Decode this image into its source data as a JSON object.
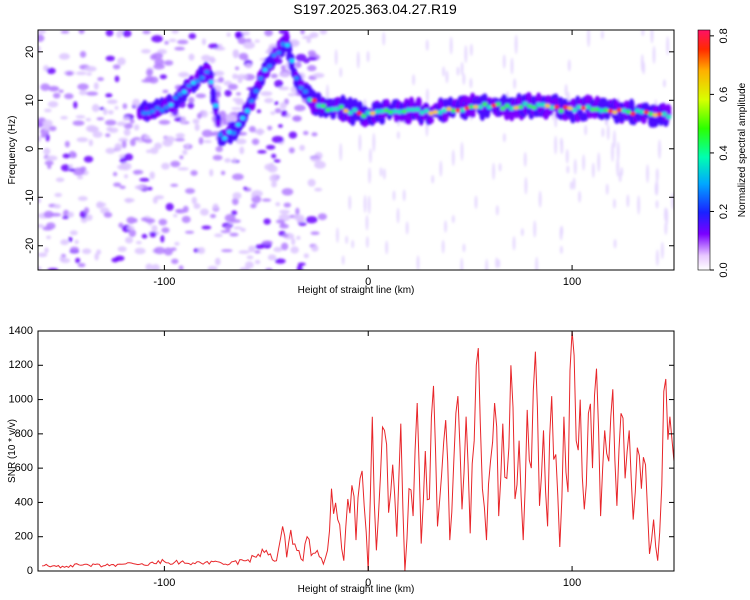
{
  "title": "S197.2025.363.04.27.R19",
  "chart_data": [
    {
      "type": "heatmap",
      "xlabel": "Height of straight line (km)",
      "ylabel": "Frequency (Hz)",
      "xlim": [
        -162,
        150
      ],
      "ylim": [
        -25,
        24.5
      ],
      "xticks": [
        -100,
        0,
        100
      ],
      "yticks": [
        -20,
        -10,
        0,
        10,
        20
      ],
      "colorbar": {
        "label": "Normalized spectral amplitude",
        "range": [
          0,
          0.82
        ],
        "ticks": [
          "0.0",
          "0.2",
          "0.4",
          "0.6",
          "0.8"
        ]
      },
      "ridge": [
        {
          "x": -112,
          "y": 7.5
        },
        {
          "x": -100,
          "y": 8.5
        },
        {
          "x": -92,
          "y": 11
        },
        {
          "x": -85,
          "y": 14
        },
        {
          "x": -78,
          "y": 16
        },
        {
          "x": -72,
          "y": 2
        },
        {
          "x": -65,
          "y": 4
        },
        {
          "x": -58,
          "y": 9
        },
        {
          "x": -52,
          "y": 15
        },
        {
          "x": -46,
          "y": 19
        },
        {
          "x": -40,
          "y": 22
        },
        {
          "x": -35,
          "y": 14
        },
        {
          "x": -28,
          "y": 10
        },
        {
          "x": -20,
          "y": 8.5
        },
        {
          "x": -10,
          "y": 8
        },
        {
          "x": 0,
          "y": 7
        },
        {
          "x": 10,
          "y": 7.5
        },
        {
          "x": 20,
          "y": 8
        },
        {
          "x": 30,
          "y": 7.5
        },
        {
          "x": 40,
          "y": 8
        },
        {
          "x": 50,
          "y": 8.5
        },
        {
          "x": 60,
          "y": 9
        },
        {
          "x": 70,
          "y": 8.5
        },
        {
          "x": 80,
          "y": 9
        },
        {
          "x": 90,
          "y": 8.5
        },
        {
          "x": 100,
          "y": 8
        },
        {
          "x": 110,
          "y": 8.5
        },
        {
          "x": 120,
          "y": 8
        },
        {
          "x": 130,
          "y": 7.5
        },
        {
          "x": 140,
          "y": 7
        },
        {
          "x": 148,
          "y": 7
        }
      ]
    },
    {
      "type": "line",
      "xlabel": "Height of straight line (km)",
      "ylabel": "SNR (10 * v/v)",
      "xlim": [
        -162,
        150
      ],
      "ylim": [
        0,
        1400
      ],
      "xticks": [
        -100,
        0,
        100
      ],
      "yticks": [
        0,
        200,
        400,
        600,
        800,
        1000,
        1200,
        1400
      ],
      "line_color": "#e8262a",
      "series": [
        {
          "x": [
            -160,
            -150,
            -140,
            -130,
            -120,
            -110,
            -100,
            -90,
            -80,
            -70,
            -60,
            -55,
            -50,
            -45,
            -42,
            -40,
            -38,
            -35,
            -32,
            -30,
            -28,
            -25,
            -22,
            -20,
            -18,
            -15,
            -12,
            -10,
            -8,
            -6,
            -4,
            -2,
            0,
            2,
            4,
            6,
            8,
            10,
            12,
            14,
            16,
            18,
            20,
            22,
            24,
            26,
            28,
            30,
            32,
            34,
            36,
            38,
            40,
            42,
            44,
            46,
            48,
            50,
            52,
            54,
            56,
            58,
            60,
            62,
            64,
            66,
            68,
            70,
            72,
            74,
            76,
            78,
            80,
            82,
            84,
            86,
            88,
            90,
            92,
            94,
            96,
            98,
            100,
            102,
            104,
            106,
            108,
            110,
            112,
            114,
            116,
            118,
            120,
            122,
            124,
            126,
            128,
            130,
            132,
            134,
            136,
            138,
            140,
            142,
            144,
            146,
            148,
            150
          ],
          "values": [
            30,
            28,
            35,
            30,
            40,
            35,
            55,
            45,
            50,
            40,
            60,
            80,
            120,
            60,
            260,
            80,
            240,
            120,
            60,
            200,
            90,
            120,
            40,
            120,
            480,
            300,
            60,
            420,
            500,
            180,
            540,
            380,
            0,
            900,
            120,
            560,
            820,
            340,
            620,
            200,
            860,
            0,
            480,
            320,
            980,
            160,
            700,
            420,
            1080,
            260,
            560,
            880,
            180,
            640,
            1020,
            360,
            900,
            220,
            760,
            1300,
            480,
            180,
            640,
            980,
            320,
            860,
            540,
            1200,
            420,
            760,
            180,
            940,
            600,
            1280,
            380,
            820,
            260,
            1020,
            680,
            140,
            900,
            460,
            1400,
            760,
            1000,
            360,
            920,
            600,
            1180,
            320,
            820,
            640,
            1060,
            380,
            920,
            540,
            820,
            300,
            720,
            480,
            620,
            100,
            300,
            60,
            500,
            1120,
            900,
            640
          ]
        }
      ]
    }
  ]
}
